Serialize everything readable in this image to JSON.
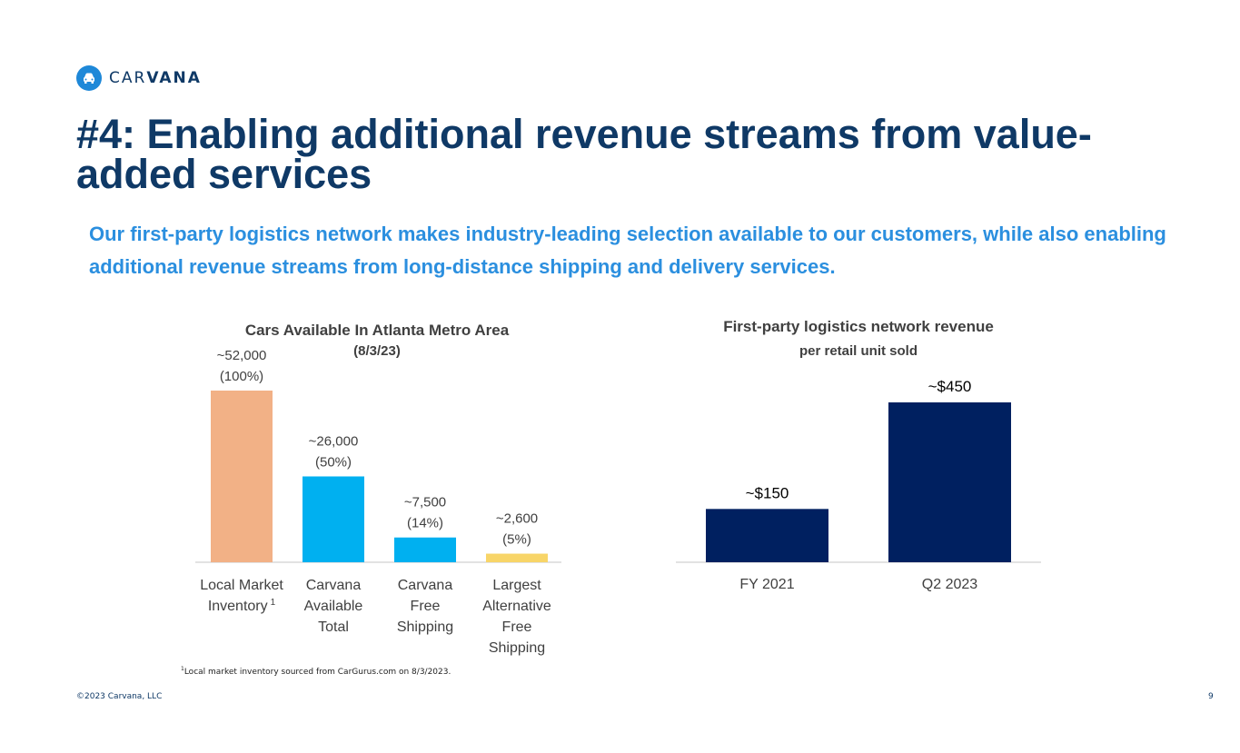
{
  "brand": {
    "name_light": "CAR",
    "name_bold": "VANA",
    "logo_icon": "car-icon",
    "colors": {
      "navy": "#0f3966",
      "blue": "#2b8fdf",
      "logo_blue": "#1e88d8"
    }
  },
  "slide": {
    "title": "#4: Enabling additional revenue streams from value-added services",
    "subtitle": "Our first-party logistics network makes industry-leading selection available to our customers, while also enabling additional revenue streams from long-distance shipping and delivery services.",
    "footnote_marker": "1",
    "footnote": "Local market inventory sourced from CarGurus.com on 8/3/2023.",
    "copyright": "©2023 Carvana, LLC",
    "page_number": "9"
  },
  "chart_data": [
    {
      "type": "bar",
      "title": "Cars Available In Atlanta Metro Area",
      "subtitle": "(8/3/23)",
      "categories": [
        [
          "Local Market",
          "Inventory"
        ],
        [
          "Carvana",
          "Available",
          "Total"
        ],
        [
          "Carvana",
          "Free",
          "Shipping"
        ],
        [
          "Largest",
          "Alternative",
          "Free",
          "Shipping"
        ]
      ],
      "category_superscripts": [
        "1",
        "",
        "",
        ""
      ],
      "values": [
        52000,
        26000,
        7500,
        2600
      ],
      "labels": [
        "~52,000",
        "~26,000",
        "~7,500",
        "~2,600"
      ],
      "sublabels": [
        "(100%)",
        "(50%)",
        "(14%)",
        "(5%)"
      ],
      "colors": [
        "#f2b186",
        "#00b0f0",
        "#00b0f0",
        "#f8d568"
      ],
      "ylim": [
        0,
        52000
      ],
      "xlabel": "",
      "ylabel": "",
      "grid": false
    },
    {
      "type": "bar",
      "title": "First-party logistics network revenue",
      "subtitle": "per retail unit sold",
      "categories": [
        [
          "FY 2021"
        ],
        [
          "Q2 2023"
        ]
      ],
      "category_superscripts": [
        "",
        ""
      ],
      "values": [
        150,
        450
      ],
      "labels": [
        "~$150",
        "~$450"
      ],
      "sublabels": [
        "",
        ""
      ],
      "colors": [
        "#002060",
        "#002060"
      ],
      "ylim": [
        0,
        450
      ],
      "xlabel": "",
      "ylabel": "",
      "grid": false
    }
  ]
}
